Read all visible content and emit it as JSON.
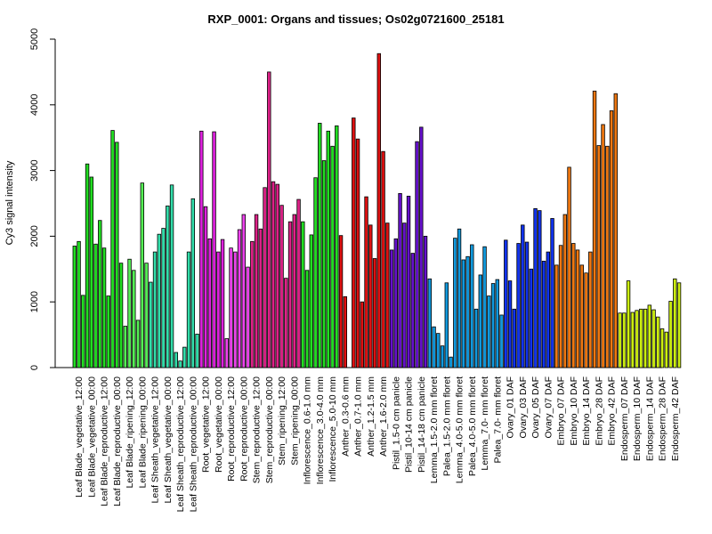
{
  "chart_data": {
    "type": "bar",
    "title": "RXP_0001: Organs and tissues; Os02g0721600_25181",
    "xlabel": "",
    "ylabel": "Cy3 signal intensity",
    "ylim": [
      0,
      5000
    ],
    "yticks": [
      0,
      1000,
      2000,
      3000,
      4000,
      5000
    ],
    "grid": false,
    "legend": "none",
    "groups": [
      {
        "label": "Leaf Blade_vegetative_12:00",
        "color": "#22dd22",
        "values": [
          1850,
          1920,
          1100
        ]
      },
      {
        "label": "Leaf Blade_vegetative_00:00",
        "color": "#22dd22",
        "values": [
          3100,
          2900,
          1880
        ]
      },
      {
        "label": "Leaf Blade_reproductive_12:00",
        "color": "#22dd22",
        "values": [
          2240,
          1820,
          1090
        ]
      },
      {
        "label": "Leaf Blade_reproductive_00:00",
        "color": "#22dd22",
        "values": [
          3610,
          3430,
          1590
        ]
      },
      {
        "label": "Leaf Blade_ripening_12:00",
        "color": "#55ee55",
        "values": [
          630,
          1650,
          1480
        ]
      },
      {
        "label": "Leaf Blade_ripening_00:00",
        "color": "#55ee55",
        "values": [
          720,
          2810,
          1590
        ]
      },
      {
        "label": "Leaf Sheath_vegetative_12:00",
        "color": "#33ddaa",
        "values": [
          1300,
          1760,
          2030
        ]
      },
      {
        "label": "Leaf Sheath_vegetative_00:00",
        "color": "#33ddaa",
        "values": [
          2120,
          2460,
          2780
        ]
      },
      {
        "label": "Leaf Sheath_reproductive_12:00",
        "color": "#33ddaa",
        "values": [
          230,
          100,
          310
        ]
      },
      {
        "label": "Leaf Sheath_reproductive_00:00",
        "color": "#33ddaa",
        "values": [
          1760,
          2570,
          510
        ]
      },
      {
        "label": "Root_vegetative_12:00",
        "color": "#dd22dd",
        "values": [
          3600,
          2450,
          1960
        ]
      },
      {
        "label": "Root_vegetative_00:00",
        "color": "#dd22dd",
        "values": [
          3590,
          1760,
          1950
        ]
      },
      {
        "label": "Root_reproductive_12:00",
        "color": "#ee44ee",
        "values": [
          440,
          1820,
          1760
        ]
      },
      {
        "label": "Root_reproductive_00:00",
        "color": "#ee44ee",
        "values": [
          2100,
          2330,
          1530
        ]
      },
      {
        "label": "Stem_reproductive_12:00",
        "color": "#dd2288",
        "values": [
          1920,
          2330,
          2110
        ]
      },
      {
        "label": "Stem_reproductive_00:00",
        "color": "#dd2288",
        "values": [
          2740,
          4500,
          2830
        ]
      },
      {
        "label": "Stem_ripening_12:00",
        "color": "#dd2288",
        "values": [
          2790,
          2470,
          1360
        ]
      },
      {
        "label": "Stem_ripening_00:00",
        "color": "#dd2288",
        "values": [
          2220,
          2330,
          2560
        ]
      },
      {
        "label": "Inflorescence_0.6-1.0 mm",
        "color": "#22dd22",
        "values": [
          2220,
          1480,
          2020
        ]
      },
      {
        "label": "Inflorescence_3.0-4.0 mm",
        "color": "#22dd22",
        "values": [
          2890,
          3720,
          3150
        ]
      },
      {
        "label": "Inflorescence_5.0-10 mm",
        "color": "#22dd22",
        "values": [
          3600,
          3370,
          3680
        ]
      },
      {
        "label": "Anther_0.3-0.6 mm",
        "color": "#dd1111",
        "values": [
          2010,
          1080,
          0
        ]
      },
      {
        "label": "Anther_0.7-1.0 mm",
        "color": "#dd1111",
        "values": [
          3800,
          3480,
          1000
        ]
      },
      {
        "label": "Anther_1.2-1.5 mm",
        "color": "#dd1111",
        "values": [
          2600,
          2170,
          1660
        ]
      },
      {
        "label": "Anther_1.6-2.0 mm",
        "color": "#dd1111",
        "values": [
          4780,
          3290,
          2200
        ]
      },
      {
        "label": "Pistil_1.5-0 cm panicle",
        "color": "#6611cc",
        "values": [
          1790,
          1960,
          2650
        ]
      },
      {
        "label": "Pistil_10-14 cm panicle",
        "color": "#6611cc",
        "values": [
          2200,
          2610,
          1740
        ]
      },
      {
        "label": "Pistil_14-18 cm panicle",
        "color": "#6611cc",
        "values": [
          3440,
          3660,
          2000
        ]
      },
      {
        "label": "Lemma_1.5-2.0 mm floret",
        "color": "#1199dd",
        "values": [
          1350,
          620,
          520
        ]
      },
      {
        "label": "Palea_1.5-2.0 mm floret",
        "color": "#1199dd",
        "values": [
          330,
          1290,
          160
        ]
      },
      {
        "label": "Lemma_4.0-5.0 mm floret",
        "color": "#1199dd",
        "values": [
          1970,
          2110,
          1640
        ]
      },
      {
        "label": "Palea_4.0-5.0 mm floret",
        "color": "#1199dd",
        "values": [
          1690,
          1870,
          890
        ]
      },
      {
        "label": "Lemma_7.0- mm floret",
        "color": "#1199dd",
        "values": [
          1410,
          1840,
          1090
        ]
      },
      {
        "label": "Palea_7.0- mm floret",
        "color": "#1199dd",
        "values": [
          1280,
          1340,
          800
        ]
      },
      {
        "label": "Ovary_01 DAF",
        "color": "#1133ee",
        "values": [
          1940,
          1320,
          890
        ]
      },
      {
        "label": "Ovary_03 DAF",
        "color": "#1133ee",
        "values": [
          1890,
          2170,
          1910
        ]
      },
      {
        "label": "Ovary_05 DAF",
        "color": "#1133ee",
        "values": [
          1500,
          2420,
          2390
        ]
      },
      {
        "label": "Ovary_07 DAF",
        "color": "#1133ee",
        "values": [
          1620,
          1760,
          2270
        ]
      },
      {
        "label": "Embryo_07 DAF",
        "color": "#ee7711",
        "values": [
          1560,
          1860,
          2330
        ]
      },
      {
        "label": "Embryo_10 DAF",
        "color": "#ee7711",
        "values": [
          3050,
          1890,
          1790
        ]
      },
      {
        "label": "Embryo_14 DAF",
        "color": "#ee7711",
        "values": [
          1560,
          1440,
          1760
        ]
      },
      {
        "label": "Embryo_28 DAF",
        "color": "#ee7711",
        "values": [
          4210,
          3380,
          3700
        ]
      },
      {
        "label": "Embryo_42 DAF",
        "color": "#ee7711",
        "values": [
          3370,
          3910,
          4170
        ]
      },
      {
        "label": "Endosperm_07 DAF",
        "color": "#ccee11",
        "values": [
          830,
          830,
          1320
        ]
      },
      {
        "label": "Endosperm_10 DAF",
        "color": "#ccee11",
        "values": [
          840,
          870,
          890
        ]
      },
      {
        "label": "Endosperm_14 DAF",
        "color": "#ccee11",
        "values": [
          890,
          950,
          880
        ]
      },
      {
        "label": "Endosperm_28 DAF",
        "color": "#ccee11",
        "values": [
          770,
          590,
          540
        ]
      },
      {
        "label": "Endosperm_42 DAF",
        "color": "#ccee11",
        "values": [
          1010,
          1350,
          1290
        ]
      }
    ]
  }
}
